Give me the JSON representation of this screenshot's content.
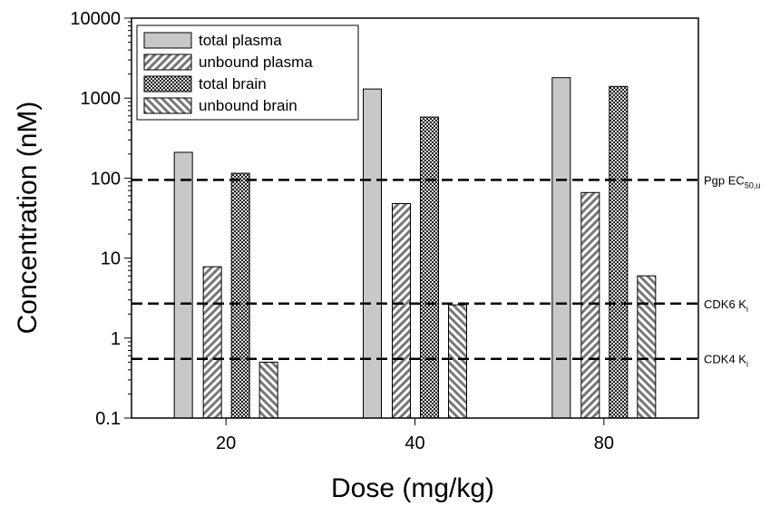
{
  "chart_data": {
    "type": "bar",
    "xlabel": "Dose (mg/kg)",
    "ylabel": "Concentration (nM)",
    "categories": [
      "20",
      "40",
      "80"
    ],
    "log_scale": true,
    "ylim": [
      0.1,
      10000
    ],
    "yticks": [
      0.1,
      1,
      10,
      100,
      1000,
      10000
    ],
    "legend_position": "upper-left",
    "series": [
      {
        "name": "total plasma",
        "color": "#c8c8c8",
        "pattern": "solid",
        "values": [
          210,
          1300,
          1800
        ]
      },
      {
        "name": "unbound plasma",
        "color": "#9a9a9a",
        "pattern": "forward-hatch",
        "values": [
          7.8,
          48,
          66
        ]
      },
      {
        "name": "total brain",
        "color": "#3a3a3a",
        "pattern": "cross-hatch",
        "values": [
          115,
          580,
          1400
        ]
      },
      {
        "name": "unbound brain",
        "color": "#9a9a9a",
        "pattern": "back-hatch",
        "values": [
          0.5,
          2.6,
          6
        ]
      }
    ],
    "reference_lines": [
      {
        "value": 95,
        "label": "Pgp EC",
        "sub": "50,u"
      },
      {
        "value": 2.7,
        "label": "CDK6 K",
        "sub": "i"
      },
      {
        "value": 0.55,
        "label": "CDK4 K",
        "sub": "i"
      }
    ]
  }
}
